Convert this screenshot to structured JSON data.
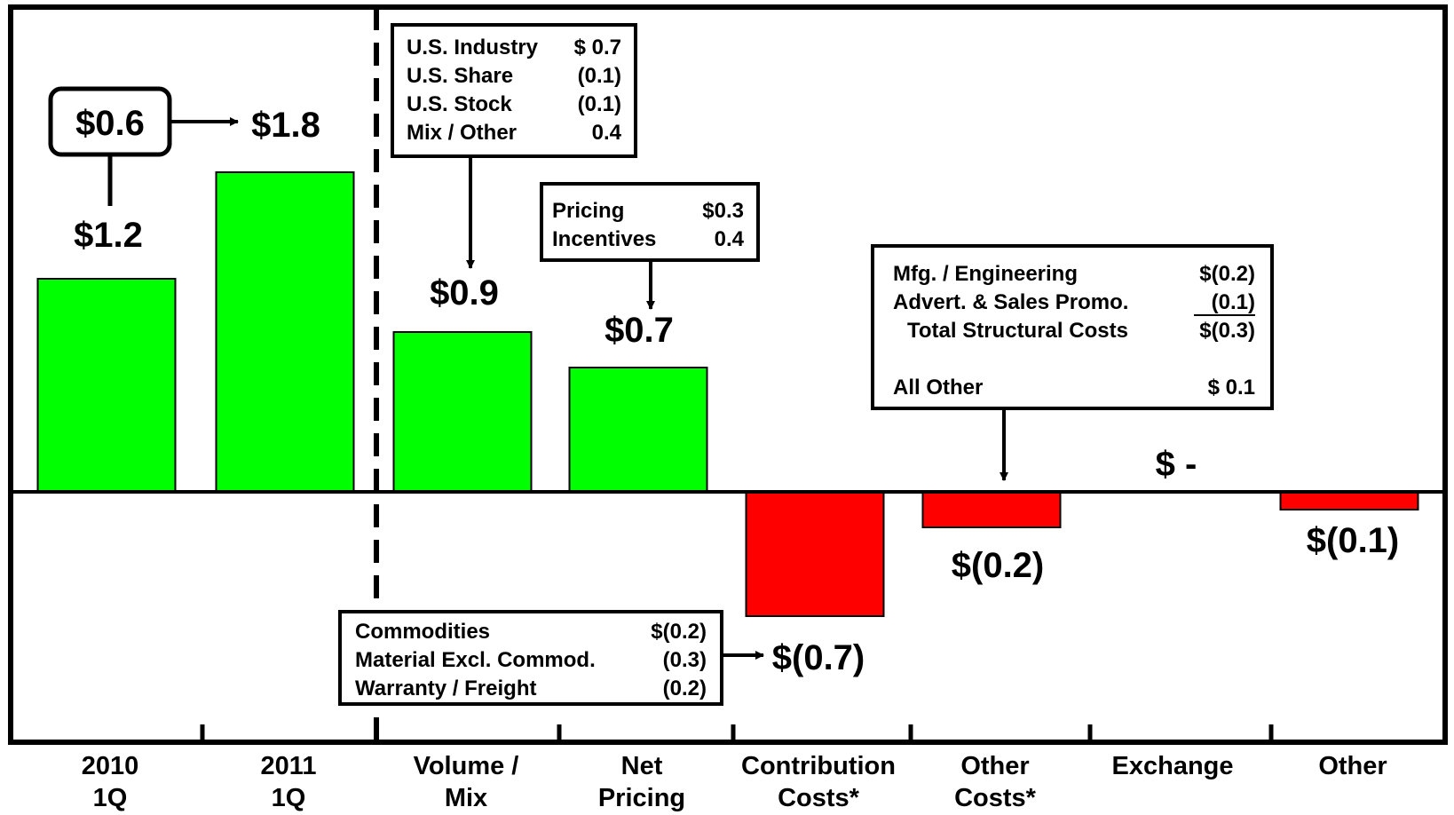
{
  "chart_data": {
    "type": "bar",
    "title": "",
    "xlabel": "",
    "ylabel": "",
    "ylim": [
      -1.0,
      2.15
    ],
    "categories": [
      [
        "2010",
        "1Q"
      ],
      [
        "2011",
        "1Q"
      ],
      [
        "Volume /",
        "Mix"
      ],
      [
        "Net",
        "Pricing"
      ],
      [
        "Contribution",
        "Costs*"
      ],
      [
        "Other",
        "Costs*"
      ],
      [
        "Exchange"
      ],
      [
        "Other"
      ]
    ],
    "values": [
      1.2,
      1.8,
      0.9,
      0.7,
      -0.7,
      -0.2,
      0.0,
      -0.1
    ],
    "value_labels": [
      "$1.2",
      "$1.8",
      "$0.9",
      "$0.7",
      "$(0.7)",
      "$(0.2)",
      "$ -",
      "$(0.1)"
    ],
    "colors": {
      "positive": "#00ff00",
      "negative": "#ff0000"
    },
    "annotations": {
      "change": {
        "value": "$0.6",
        "target": "$1.8"
      },
      "volume_mix": [
        {
          "label": "U.S. Industry",
          "value": "$ 0.7"
        },
        {
          "label": "U.S. Share",
          "value": "(0.1)"
        },
        {
          "label": "U.S. Stock",
          "value": "(0.1)"
        },
        {
          "label": "Mix / Other",
          "value": "0.4"
        }
      ],
      "net_pricing": [
        {
          "label": "Pricing",
          "value": "$0.3"
        },
        {
          "label": "Incentives",
          "value": "0.4"
        }
      ],
      "other_costs": [
        {
          "label": "Mfg. / Engineering",
          "value": "$(0.2)"
        },
        {
          "label": "Advert. & Sales Promo.",
          "value": "(0.1)"
        },
        {
          "label": "Total Structural Costs",
          "value": "$(0.3)"
        },
        {
          "label": "All Other",
          "value": "$ 0.1"
        }
      ],
      "contribution_costs": [
        {
          "label": "Commodities",
          "value": "$(0.2)"
        },
        {
          "label": "Material Excl. Commod.",
          "value": "(0.3)"
        },
        {
          "label": "Warranty / Freight",
          "value": "(0.2)"
        }
      ]
    }
  }
}
